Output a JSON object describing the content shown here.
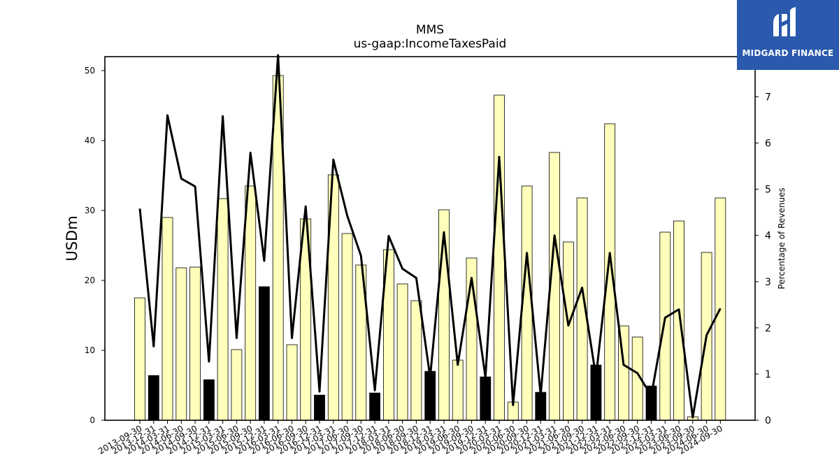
{
  "logo": {
    "text": "MIDGARD FINANCE"
  },
  "chart_data": {
    "type": "bar",
    "title": "MMS",
    "subtitle": "us-gaap:IncomeTaxesPaid",
    "ylabel": "USDm",
    "y2label": "Percentage of Revenues",
    "ylim": [
      0,
      52
    ],
    "y2lim": [
      0,
      7.87
    ],
    "yticks": [
      0,
      10,
      20,
      30,
      40,
      50
    ],
    "y2ticks": [
      0,
      1,
      2,
      3,
      4,
      5,
      6,
      7
    ],
    "categories": [
      "2013-09-30",
      "2013-12-31",
      "2014-03-31",
      "2014-06-30",
      "2014-09-30",
      "2014-12-31",
      "2015-03-31",
      "2015-06-30",
      "2015-09-30",
      "2015-12-31",
      "2016-03-31",
      "2016-06-30",
      "2016-09-30",
      "2016-12-31",
      "2017-03-31",
      "2017-06-30",
      "2017-09-30",
      "2017-12-31",
      "2018-03-31",
      "2018-06-30",
      "2018-09-30",
      "2018-12-31",
      "2019-03-31",
      "2019-06-30",
      "2019-09-30",
      "2019-12-31",
      "2020-03-31",
      "2020-06-30",
      "2020-09-30",
      "2020-12-31",
      "2021-03-31",
      "2021-06-30",
      "2021-09-30",
      "2021-12-31",
      "2022-03-31",
      "2022-06-30",
      "2022-09-30",
      "2022-12-31",
      "2023-03-31",
      "2023-06-30",
      "2023-09-30",
      "2024-06-30",
      "2024-09-30"
    ],
    "series": [
      {
        "kind": "bar",
        "values": [
          17.5,
          6.4,
          29.0,
          21.8,
          21.9,
          5.8,
          31.7,
          10.1,
          33.5,
          19.1,
          49.3,
          10.8,
          28.8,
          3.6,
          35.1,
          26.7,
          22.2,
          3.9,
          24.4,
          19.5,
          17.1,
          7.0,
          30.1,
          8.6,
          23.2,
          6.2,
          46.5,
          2.6,
          33.5,
          4.0,
          38.3,
          25.5,
          31.8,
          7.9,
          42.4,
          13.5,
          11.9,
          4.9,
          26.9,
          28.5,
          0.5,
          24.0,
          31.8
        ],
        "highlight": [
          false,
          true,
          false,
          false,
          false,
          true,
          false,
          false,
          false,
          true,
          false,
          false,
          false,
          true,
          false,
          false,
          false,
          true,
          false,
          false,
          false,
          true,
          false,
          false,
          false,
          true,
          false,
          false,
          false,
          true,
          false,
          false,
          false,
          true,
          false,
          false,
          false,
          true,
          false,
          false,
          false,
          false,
          false
        ],
        "colors": {
          "normal": "#ffffbb",
          "highlight": "#000000",
          "edge": "#000000"
        }
      },
      {
        "kind": "line",
        "axis": "right",
        "color": "#000000",
        "values": [
          4.58,
          1.6,
          6.6,
          5.23,
          5.06,
          1.27,
          6.58,
          1.78,
          5.79,
          3.45,
          7.9,
          1.78,
          4.63,
          0.62,
          5.64,
          4.43,
          3.56,
          0.65,
          3.99,
          3.28,
          3.08,
          0.93,
          4.07,
          1.2,
          3.08,
          0.93,
          5.7,
          0.33,
          3.62,
          0.55,
          4.0,
          2.05,
          2.87,
          0.94,
          3.62,
          1.2,
          1.02,
          0.53,
          2.22,
          2.4,
          0.06,
          1.84,
          2.42
        ]
      }
    ],
    "grid": false
  }
}
